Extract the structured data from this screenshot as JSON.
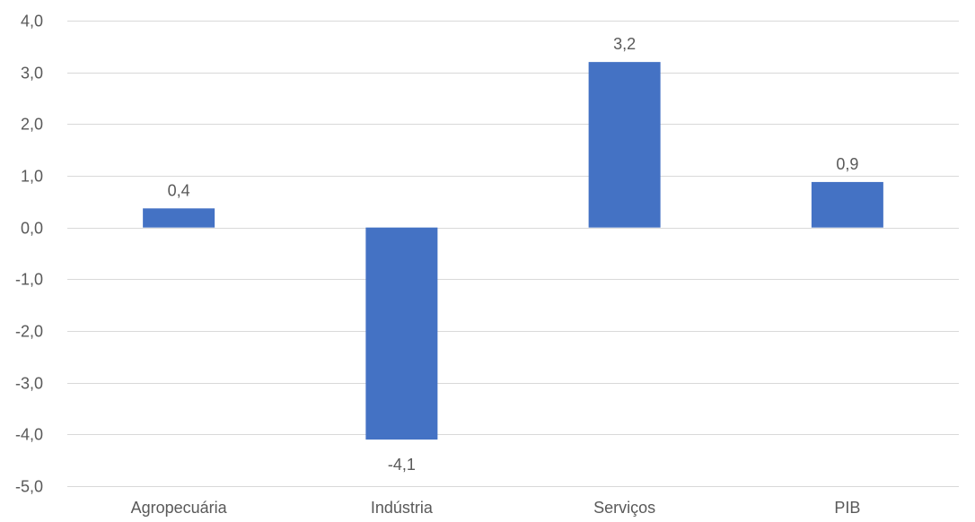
{
  "chart_data": {
    "type": "bar",
    "categories": [
      "Agropecuária",
      "Indústria",
      "Serviços",
      "PIB"
    ],
    "values": [
      0.37,
      -4.1,
      3.2,
      0.88
    ],
    "data_labels": [
      "0,4",
      "-4,1",
      "3,2",
      "0,9"
    ],
    "ylim": [
      -5,
      4
    ],
    "yticks": [
      4,
      3,
      2,
      1,
      0,
      -1,
      -2,
      -3,
      -4,
      -5
    ],
    "ytick_labels": [
      "4,0",
      "3,0",
      "2,0",
      "1,0",
      "0,0",
      "-1,0",
      "-2,0",
      "-3,0",
      "-4,0",
      "-5,0"
    ],
    "grid": true,
    "legend": "none",
    "title": "",
    "xlabel": "",
    "ylabel": "",
    "colors": {
      "bar": "#4472C4",
      "grid": "#D9D9D9",
      "text": "#595959"
    }
  }
}
